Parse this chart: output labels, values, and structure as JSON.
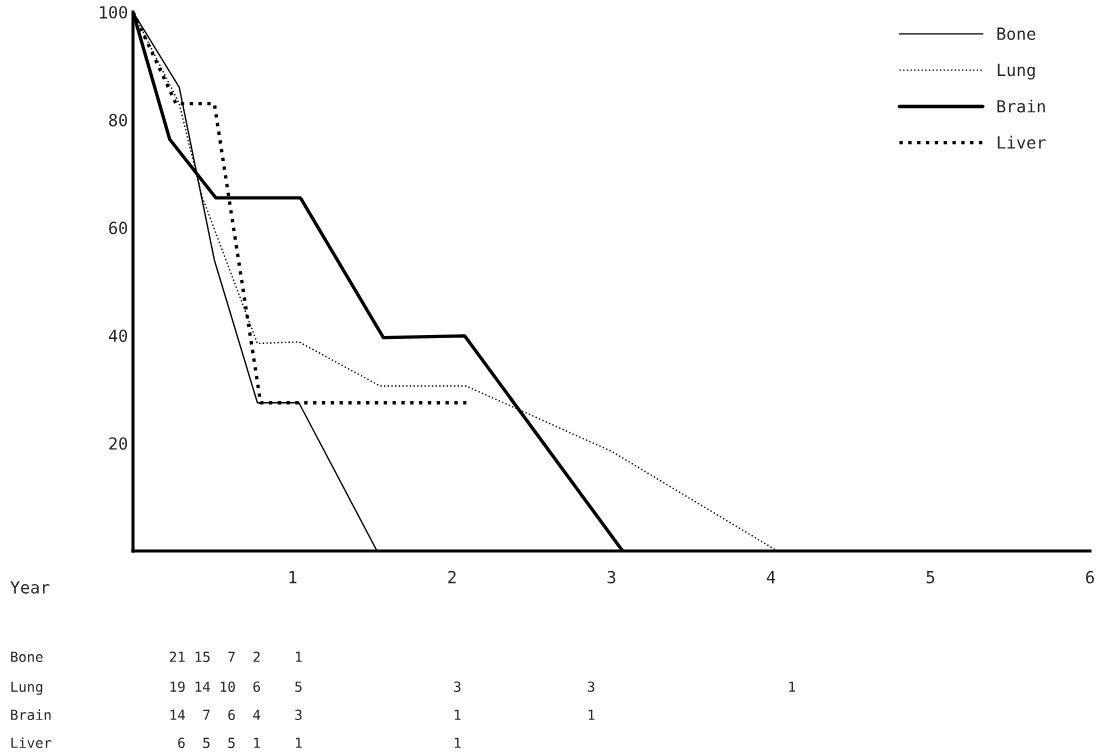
{
  "chart_data": {
    "type": "line",
    "xlabel": "Year",
    "xlim": [
      0,
      6
    ],
    "xticks": [
      1,
      2,
      3,
      4,
      5,
      6
    ],
    "ylim": [
      0,
      100
    ],
    "yticks": [
      20,
      40,
      60,
      80,
      100
    ],
    "grid": false,
    "legend": "top right",
    "marker": "none",
    "series": [
      {
        "name": "Bone",
        "color": "#000000",
        "line_style": "solid",
        "x": [
          0,
          0.29,
          0.51,
          0.78,
          1.04,
          1.53
        ],
        "values": [
          100,
          86,
          54,
          27.5,
          27.5,
          0
        ]
      },
      {
        "name": "Lung",
        "color": "#000000",
        "line_style": "dotted",
        "x": [
          0,
          0.29,
          0.43,
          0.78,
          1.04,
          1.55,
          2.09,
          3.0,
          4.04
        ],
        "values": [
          100,
          83,
          66,
          38.5,
          38.8,
          30.6,
          30.6,
          18.5,
          0
        ]
      },
      {
        "name": "Brain",
        "color": "#000000",
        "line_style": "solid",
        "x": [
          0,
          0.23,
          0.52,
          1.05,
          1.57,
          2.08,
          3.07
        ],
        "values": [
          100,
          76.4,
          65.5,
          65.5,
          39.6,
          39.9,
          0
        ]
      },
      {
        "name": "Liver",
        "color": "#000000",
        "line_style": "dotted",
        "x": [
          0,
          0.27,
          0.51,
          0.8,
          2.09
        ],
        "values": [
          100,
          83,
          83,
          27.5,
          27.5
        ]
      }
    ],
    "annotations": [
      "Bone               21 15  7  2    1",
      "Lung               19 14 10  6    5                  3               3                       1",
      "Brain              14  7  6  4    3                  1               1",
      "Liver               6  5  5  1    1                  1"
    ]
  }
}
